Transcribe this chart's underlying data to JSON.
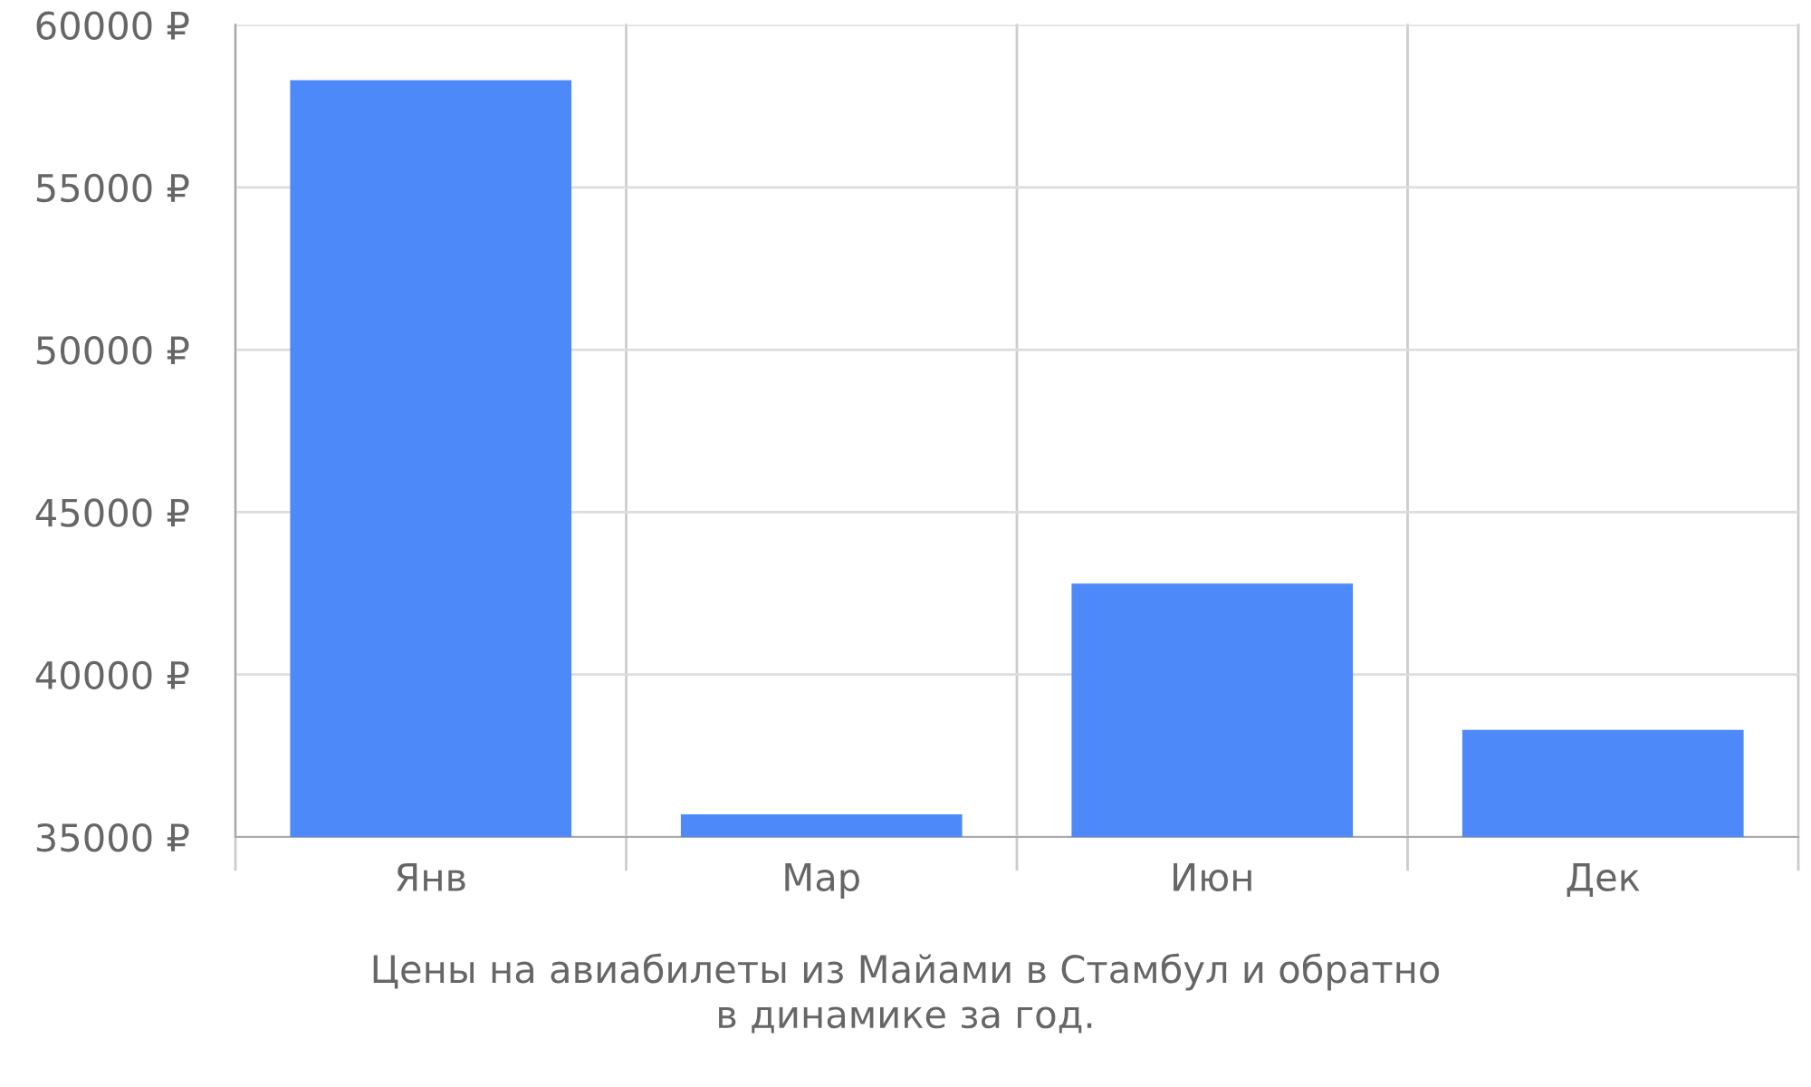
{
  "chart_data": {
    "type": "bar",
    "categories": [
      "Янв",
      "Мар",
      "Июн",
      "Дек"
    ],
    "values": [
      58300,
      35700,
      42800,
      38300
    ],
    "color": "#4d89f9",
    "ylim": [
      35000,
      60000
    ],
    "yticks": [
      {
        "value": 35000,
        "label": "35000 ₽"
      },
      {
        "value": 40000,
        "label": "40000 ₽"
      },
      {
        "value": 45000,
        "label": "45000 ₽"
      },
      {
        "value": 50000,
        "label": "50000 ₽"
      },
      {
        "value": 55000,
        "label": "55000 ₽"
      },
      {
        "value": 60000,
        "label": "60000 ₽"
      }
    ],
    "grid": true,
    "annotations": [
      "Цены на авиабилеты из Майами в Стамбул и обратно\nв динамике за год."
    ]
  }
}
